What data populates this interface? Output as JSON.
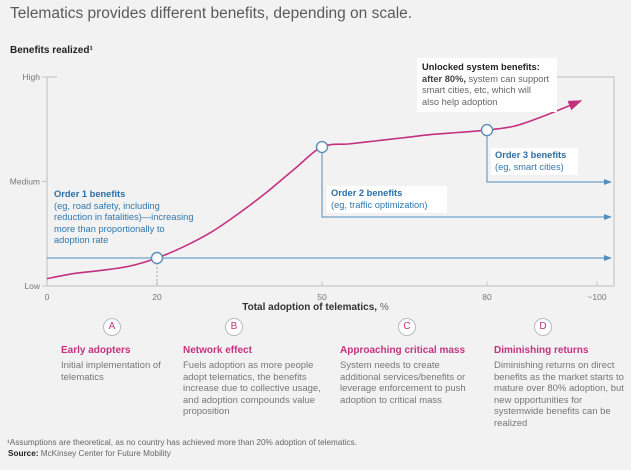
{
  "title": "Telematics provides different benefits, depending on scale.",
  "chart_data": {
    "type": "line",
    "title": "Telematics provides different benefits, depending on scale.",
    "ylabel": "Benefits realized¹",
    "xlabel": "Total adoption of telematics, %",
    "xlabel_main": "Total adoption of telematics,",
    "xlabel_unit": "%",
    "xlim": [
      0,
      103
    ],
    "ylim": [
      0,
      1
    ],
    "x_ticks": [
      {
        "value": 0,
        "label": "0"
      },
      {
        "value": 20,
        "label": "20"
      },
      {
        "value": 50,
        "label": "50"
      },
      {
        "value": 80,
        "label": "80"
      },
      {
        "value": 100,
        "label": "~100"
      }
    ],
    "y_ticks": [
      {
        "value": 0,
        "label": "Low"
      },
      {
        "value": 0.5,
        "label": "Medium"
      },
      {
        "value": 1,
        "label": "High"
      }
    ],
    "grid": false,
    "series": [
      {
        "name": "Benefits realized",
        "color": "#c4327f",
        "x": [
          0,
          5,
          10,
          15,
          20,
          25,
          30,
          35,
          40,
          45,
          50,
          55,
          60,
          65,
          70,
          75,
          80,
          85,
          90,
          97
        ],
        "y": [
          0.035,
          0.06,
          0.075,
          0.095,
          0.134,
          0.19,
          0.26,
          0.35,
          0.45,
          0.56,
          0.665,
          0.68,
          0.695,
          0.71,
          0.725,
          0.735,
          0.746,
          0.765,
          0.81,
          0.885
        ],
        "end_arrow": true
      }
    ],
    "markers": [
      {
        "x": 20,
        "y": 0.134,
        "label": "Order 1 threshold"
      },
      {
        "x": 50,
        "y": 0.665,
        "label": "Order 2 threshold"
      },
      {
        "x": 80,
        "y": 0.746,
        "label": "Order 3 threshold"
      }
    ],
    "benefit_arrows": [
      {
        "from_x": 0,
        "level": 0.134,
        "name": "order-1"
      },
      {
        "from_x": 50,
        "level": 0.14,
        "drop_from": 0.665,
        "name": "order-2",
        "y_end": 0.495
      },
      {
        "from_x": 80,
        "drop_from": 0.746,
        "name": "order-3",
        "y_end": 0.495
      }
    ],
    "annotations": {
      "order1": {
        "title": "Order 1 benefits",
        "lines": [
          "(eg, road safety, including",
          "reduction in fatalities)—increasing",
          "more than proportionally to",
          "adoption rate"
        ]
      },
      "order2": {
        "title": "Order 2 benefits",
        "lines": [
          "(eg, traffic optimization)"
        ]
      },
      "order3": {
        "title": "Order 3 benefits",
        "lines": [
          "(eg, smart cities)"
        ]
      },
      "unlocked": {
        "title": "Unlocked system benefits:",
        "bold_prefix": "after 80%,",
        "lines": [
          " system can support",
          "smart cities, etc, which will",
          "also help adoption"
        ]
      }
    }
  },
  "stages": [
    {
      "letter": "A",
      "title": "Early adopters",
      "desc": "Initial implementation of telematics"
    },
    {
      "letter": "B",
      "title": "Network effect",
      "desc": "Fuels adoption as more people adopt telematics, the benefits increase due to collective usage, and adoption compounds value proposition"
    },
    {
      "letter": "C",
      "title": "Approaching critical mass",
      "desc": "System needs to create additional services/benefits or leverage enforcement to push adoption to critical mass"
    },
    {
      "letter": "D",
      "title": "Diminishing returns",
      "desc": "Diminishing returns on direct benefits as the market starts to mature over 80% adoption, but new opportunities for systemwide benefits can be realized"
    }
  ],
  "footnote": "¹Assumptions are theoretical, as no country has achieved more than 20% adoption of telematics.",
  "source_label": "Source:",
  "source_text": " McKinsey Center for Future Mobility",
  "colors": {
    "curve": "#c4327f",
    "benefit_line": "#4f8fc0",
    "axis": "#c8c8c8",
    "stage_accent": "#c4327f"
  }
}
